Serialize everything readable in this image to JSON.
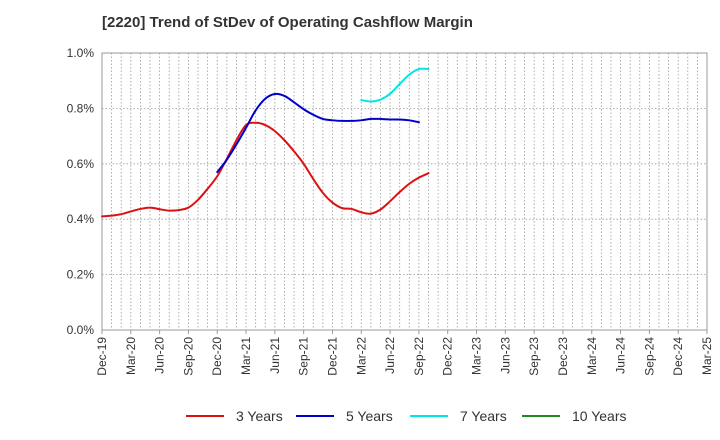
{
  "chart_data": {
    "type": "line",
    "title": "[2220]  Trend of StDev of Operating Cashflow Margin",
    "xlabel": "",
    "ylabel": "",
    "ylim": [
      0,
      1.0
    ],
    "yticks": [
      0,
      0.2,
      0.4,
      0.6,
      0.8,
      1.0
    ],
    "ytick_labels": [
      "0.0%",
      "0.2%",
      "0.4%",
      "0.6%",
      "0.8%",
      "1.0%"
    ],
    "x_tick_labels": [
      "Dec-19",
      "Mar-20",
      "Jun-20",
      "Sep-20",
      "Dec-20",
      "Mar-21",
      "Jun-21",
      "Sep-21",
      "Dec-21",
      "Mar-22",
      "Jun-22",
      "Sep-22",
      "Dec-22",
      "Mar-23",
      "Jun-23",
      "Sep-23",
      "Dec-23",
      "Mar-24",
      "Jun-24",
      "Sep-24",
      "Dec-24",
      "Mar-25"
    ],
    "grid": true,
    "legend_position": "bottom",
    "series": [
      {
        "name": "3 Years",
        "color": "#dd1111",
        "start_index": 0,
        "values": [
          0.41,
          0.413,
          0.418,
          0.428,
          0.437,
          0.442,
          0.436,
          0.431,
          0.433,
          0.442,
          0.47,
          0.51,
          0.555,
          0.618,
          0.685,
          0.74,
          0.748,
          0.74,
          0.718,
          0.685,
          0.645,
          0.6,
          0.545,
          0.495,
          0.46,
          0.44,
          0.437,
          0.425,
          0.42,
          0.435,
          0.465,
          0.498,
          0.528,
          0.55,
          0.566
        ]
      },
      {
        "name": "5 Years",
        "color": "#0000cc",
        "start_index": 12,
        "values": [
          0.57,
          0.615,
          0.67,
          0.73,
          0.793,
          0.835,
          0.852,
          0.845,
          0.822,
          0.797,
          0.777,
          0.762,
          0.757,
          0.755,
          0.755,
          0.757,
          0.762,
          0.762,
          0.76,
          0.76,
          0.757,
          0.75
        ]
      },
      {
        "name": "7 Years",
        "color": "#00e5e5",
        "start_index": 27,
        "values": [
          0.83,
          0.825,
          0.832,
          0.853,
          0.888,
          0.922,
          0.942,
          0.942
        ]
      },
      {
        "name": "10 Years",
        "color": "#228822",
        "start_index": 0,
        "values": []
      }
    ]
  }
}
